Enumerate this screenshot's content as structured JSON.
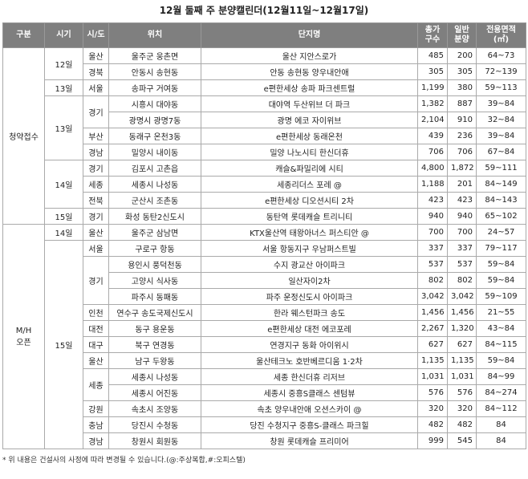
{
  "title": "12월 둘째 주 분양캘린더(12월11일~12월17일)",
  "table": {
    "header": [
      "구분",
      "시기",
      "시/도",
      "위치",
      "단지명",
      "총가\n구수",
      "일반\n분양",
      "전용면적\n(㎡)"
    ],
    "rows": [
      [
        "청약접수",
        "12일",
        "울산",
        "울주군 웅촌면",
        "울산 지안스로가",
        "485",
        "200",
        "64~73"
      ],
      [
        null,
        null,
        "경북",
        "안동시 송현동",
        "안동 송현동 양우내안애",
        "305",
        "305",
        "72~139"
      ],
      [
        null,
        "13일",
        "서울",
        "송파구 거여동",
        "e편한세상 송파 파크센트럴",
        "1,199",
        "380",
        "59~113"
      ],
      [
        null,
        "13일",
        "경기",
        "시흥시 대야동",
        "대야역 두산위브 더 파크",
        "1,382",
        "887",
        "39~84"
      ],
      [
        null,
        null,
        null,
        "광명시 광명7동",
        "광명 에코 자이위브",
        "2,104",
        "910",
        "32~84"
      ],
      [
        null,
        null,
        "부산",
        "동래구 온천3동",
        "e편한세상 동래온천",
        "439",
        "236",
        "39~84"
      ],
      [
        null,
        null,
        "경남",
        "밀양시 내이동",
        "밀양 나노시티 한신더휴",
        "706",
        "706",
        "67~84"
      ],
      [
        null,
        "14일",
        "경기",
        "김포시 고촌읍",
        "캐슬&파밀리에 시티",
        "4,800",
        "1,872",
        "59~111"
      ],
      [
        null,
        null,
        "세종",
        "세종시 나성동",
        "세종리더스 포레 @",
        "1,188",
        "201",
        "84~149"
      ],
      [
        null,
        null,
        "전북",
        "군산시 조촌동",
        "e편한세상 디오션시티 2차",
        "423",
        "423",
        "84~143"
      ],
      [
        null,
        "15일",
        "경기",
        "화성 동탄2신도시",
        "동탄역 롯데캐슬 트리니티",
        "940",
        "940",
        "65~102"
      ],
      [
        "M/H\n오픈",
        "14일",
        "울산",
        "울주군 삼남면",
        "KTX울산역 태왕아너스 퍼스티안 @",
        "700",
        "700",
        "24~57"
      ],
      [
        null,
        "15일",
        "서울",
        "구로구 항동",
        "서울 항동지구 우남퍼스트빌",
        "337",
        "337",
        "79~117"
      ],
      [
        null,
        null,
        "경기",
        "용인시 풍덕천동",
        "수지 광교산 아이파크",
        "537",
        "537",
        "59~84"
      ],
      [
        null,
        null,
        null,
        "고양시 식사동",
        "일산자이2차",
        "802",
        "802",
        "59~84"
      ],
      [
        null,
        null,
        null,
        "파주시 동패동",
        "파주 운정신도시 아이파크",
        "3,042",
        "3,042",
        "59~109"
      ],
      [
        null,
        null,
        "인천",
        "연수구 송도국제신도시",
        "한라 웨스턴파크 송도",
        "1,456",
        "1,456",
        "21~55"
      ],
      [
        null,
        null,
        "대전",
        "동구 용운동",
        "e편한세상 대전 에코포레",
        "2,267",
        "1,320",
        "43~84"
      ],
      [
        null,
        null,
        "대구",
        "북구 연경동",
        "연경지구 동화 아이위시",
        "627",
        "627",
        "84~115"
      ],
      [
        null,
        null,
        "울산",
        "남구 두왕동",
        "울산테크노 호반베르디움 1·2차",
        "1,135",
        "1,135",
        "59~84"
      ],
      [
        null,
        null,
        "세종",
        "세종시 나성동",
        "세종 한신더휴 리저브",
        "1,031",
        "1,031",
        "84~99"
      ],
      [
        null,
        null,
        null,
        "세종시 어진동",
        "세종시 중흥S클래스 센텀뷰",
        "576",
        "576",
        "84~274"
      ],
      [
        null,
        null,
        "강원",
        "속초시 조양동",
        "속초 양우내안애 오션스카이 @",
        "320",
        "320",
        "84~112"
      ],
      [
        null,
        null,
        "충남",
        "당진시 수청동",
        "당진 수청지구 중흥S-클래스 파크힐",
        "482",
        "482",
        "84"
      ],
      [
        null,
        null,
        "경남",
        "창원시 회원동",
        "창원 롯데캐슬 프리미어",
        "999",
        "545",
        "84"
      ]
    ]
  },
  "footnote": "* 위 내용은 건설사의 사정에 따라 변경될 수 있습니다.(@:주상복합,#:오피스텔)"
}
